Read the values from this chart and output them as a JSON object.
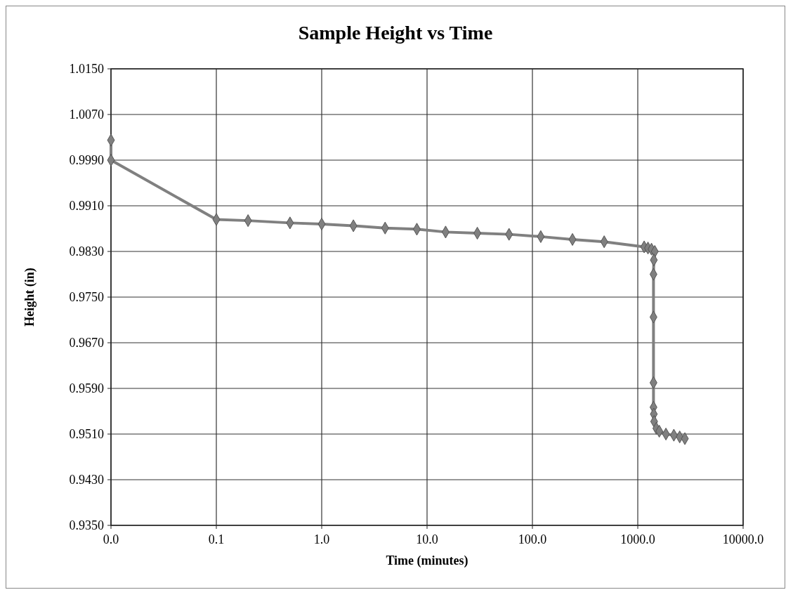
{
  "chart_data": {
    "type": "line",
    "title": "Sample Height vs Time",
    "xlabel": "Time (minutes)",
    "ylabel": "Height (in)",
    "log": "x",
    "grid": true,
    "marker": "diamond",
    "line_style": "solid",
    "xlim": [
      0.01,
      10000
    ],
    "xticks": [
      {
        "value": 0.01,
        "label": "0.0"
      },
      {
        "value": 0.1,
        "label": "0.1"
      },
      {
        "value": 1,
        "label": "1.0"
      },
      {
        "value": 10,
        "label": "10.0"
      },
      {
        "value": 100,
        "label": "100.0"
      },
      {
        "value": 1000,
        "label": "1000.0"
      },
      {
        "value": 10000,
        "label": "10000.0"
      }
    ],
    "ylim": [
      0.935,
      1.015
    ],
    "yticks": [
      {
        "value": 0.935,
        "label": "0.9350"
      },
      {
        "value": 0.943,
        "label": "0.9430"
      },
      {
        "value": 0.951,
        "label": "0.9510"
      },
      {
        "value": 0.959,
        "label": "0.9590"
      },
      {
        "value": 0.967,
        "label": "0.9670"
      },
      {
        "value": 0.975,
        "label": "0.9750"
      },
      {
        "value": 0.983,
        "label": "0.9830"
      },
      {
        "value": 0.991,
        "label": "0.9910"
      },
      {
        "value": 0.999,
        "label": "0.9990"
      },
      {
        "value": 1.007,
        "label": "1.0070"
      },
      {
        "value": 1.015,
        "label": "1.0150"
      }
    ],
    "series": [
      {
        "color": "#808080",
        "x": [
          0.01,
          0.01,
          0.1,
          0.2,
          0.5,
          1,
          2,
          4,
          8,
          15,
          30,
          60,
          120,
          240,
          480,
          1150,
          1250,
          1350,
          1450,
          1420,
          1410,
          1410,
          1410,
          1410,
          1420,
          1430,
          1500,
          1600,
          1850,
          2200,
          2500,
          2800
        ],
        "values": [
          1.0025,
          0.999,
          0.9886,
          0.9884,
          0.988,
          0.9878,
          0.9875,
          0.9871,
          0.9869,
          0.9864,
          0.9862,
          0.986,
          0.9856,
          0.9851,
          0.9847,
          0.9838,
          0.9836,
          0.9834,
          0.983,
          0.9815,
          0.979,
          0.9715,
          0.96,
          0.9557,
          0.9545,
          0.9532,
          0.952,
          0.9515,
          0.951,
          0.9508,
          0.9505,
          0.9502
        ]
      }
    ]
  }
}
